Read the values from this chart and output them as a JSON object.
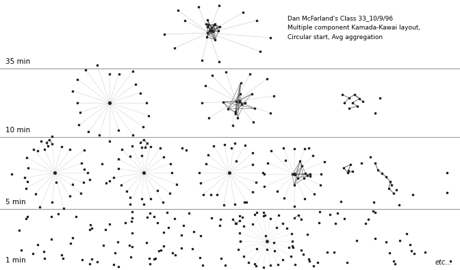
{
  "title_line1": "Dan McFarland's Class 33_10/9/96",
  "title_line2": "Multiple component Kamada-Kawai layout,",
  "title_line3": "Circular start, Avg aggregation",
  "row_labels": [
    "35 min",
    "10 min",
    "5 min",
    "1 min"
  ],
  "background_color": "#ffffff",
  "line_color_light": "#bbbbbb",
  "line_color_dark": "#333333",
  "node_color": "#222222",
  "separator_color": "#999999",
  "etc_text": "etc...",
  "seed": 42,
  "fig_width": 6.72,
  "fig_height": 3.94,
  "dpi": 100
}
